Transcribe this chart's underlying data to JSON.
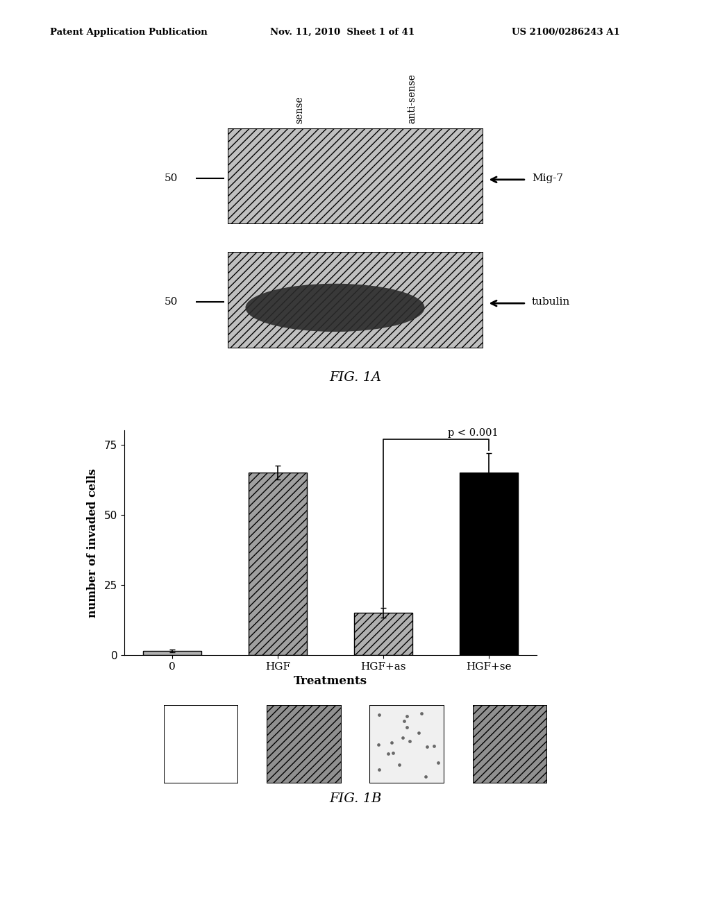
{
  "header_left": "Patent Application Publication",
  "header_mid": "Nov. 11, 2010  Sheet 1 of 41",
  "header_right": "US 2100/0286243 A1",
  "fig1a_label": "FIG. 1A",
  "fig1b_label": "FIG. 1B",
  "blot1_label_num": "50",
  "blot2_label_num": "50",
  "blot1_right_label": "Mig-7",
  "blot2_right_label": "tubulin",
  "col_label_sense": "sense",
  "col_label_antisense": "anti-sense",
  "bar_categories": [
    "0",
    "HGF",
    "HGF+as",
    "HGF+se"
  ],
  "bar_values": [
    1.5,
    65,
    15,
    65
  ],
  "bar_errors": [
    0.5,
    2.5,
    1.8,
    7
  ],
  "bar_colors": [
    "#b0b0b0",
    "#a0a0a0",
    "#b0b0b0",
    "#000000"
  ],
  "bar_hatch": [
    "",
    "///",
    "///",
    ""
  ],
  "ylabel": "number of invaded cells",
  "xlabel": "Treatments",
  "ylim": [
    0,
    80
  ],
  "yticks": [
    0,
    25,
    50,
    75
  ],
  "pvalue_text": "p < 0.001",
  "background_color": "#ffffff"
}
